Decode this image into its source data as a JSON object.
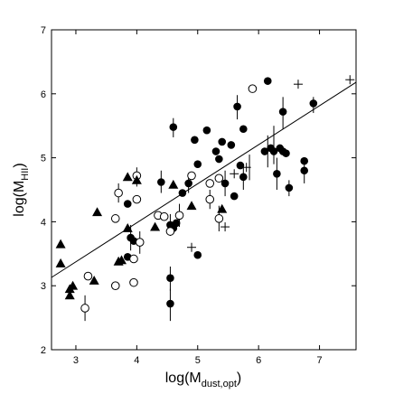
{
  "chart_data": {
    "type": "scatter",
    "title": "",
    "xlabel": "log(M",
    "xlabel_sub": "dust,opt",
    "xlabel_tail": ")",
    "ylabel": "log(M",
    "ylabel_sub": "HII",
    "ylabel_tail": ")",
    "xlim": [
      2.6,
      7.6
    ],
    "ylim": [
      2,
      7
    ],
    "xticks": [
      "3",
      "4",
      "5",
      "6",
      "7"
    ],
    "yticks": [
      "2",
      "3",
      "4",
      "5",
      "6",
      "7"
    ],
    "grid": false,
    "marker_color": "#000000",
    "fit_line": {
      "x": [
        2.6,
        7.6
      ],
      "y": [
        3.13,
        6.18
      ]
    },
    "series": [
      {
        "marker": "filled-circle",
        "points": [
          [
            3.85,
            4.28
          ],
          [
            3.9,
            3.75
          ],
          [
            3.95,
            3.7
          ],
          [
            3.85,
            3.45
          ],
          [
            4.4,
            4.62
          ],
          [
            4.55,
            3.95
          ],
          [
            4.6,
            3.9
          ],
          [
            4.65,
            3.98
          ],
          [
            4.6,
            5.48
          ],
          [
            4.75,
            4.45
          ],
          [
            4.85,
            4.6
          ],
          [
            4.95,
            5.28
          ],
          [
            5.0,
            4.9
          ],
          [
            5.15,
            5.43
          ],
          [
            5.3,
            5.1
          ],
          [
            5.35,
            4.98
          ],
          [
            5.4,
            5.25
          ],
          [
            5.45,
            4.6
          ],
          [
            5.55,
            5.2
          ],
          [
            5.6,
            4.4
          ],
          [
            5.7,
            4.88
          ],
          [
            5.75,
            4.7
          ],
          [
            5.65,
            5.8
          ],
          [
            5.75,
            5.45
          ],
          [
            6.1,
            5.1
          ],
          [
            6.15,
            6.2
          ],
          [
            6.2,
            5.15
          ],
          [
            6.25,
            5.1
          ],
          [
            6.3,
            4.75
          ],
          [
            6.35,
            5.15
          ],
          [
            6.4,
            5.1
          ],
          [
            6.45,
            5.07
          ],
          [
            6.4,
            5.72
          ],
          [
            6.5,
            4.53
          ],
          [
            6.75,
            4.95
          ],
          [
            6.75,
            4.8
          ],
          [
            6.9,
            5.85
          ],
          [
            4.55,
            3.12
          ],
          [
            4.55,
            2.72
          ],
          [
            5.0,
            3.48
          ]
        ]
      },
      {
        "marker": "open-circle",
        "points": [
          [
            3.15,
            2.65
          ],
          [
            3.2,
            3.15
          ],
          [
            3.65,
            3.0
          ],
          [
            3.65,
            4.05
          ],
          [
            3.7,
            4.45
          ],
          [
            3.95,
            3.05
          ],
          [
            3.95,
            3.42
          ],
          [
            4.0,
            4.35
          ],
          [
            4.0,
            4.72
          ],
          [
            4.05,
            3.68
          ],
          [
            4.35,
            4.1
          ],
          [
            4.45,
            4.08
          ],
          [
            4.55,
            3.85
          ],
          [
            4.7,
            4.1
          ],
          [
            4.9,
            4.72
          ],
          [
            5.2,
            4.35
          ],
          [
            5.2,
            4.6
          ],
          [
            5.35,
            4.05
          ],
          [
            5.35,
            4.68
          ],
          [
            5.9,
            6.08
          ]
        ]
      },
      {
        "marker": "filled-triangle",
        "points": [
          [
            2.75,
            3.35
          ],
          [
            2.75,
            3.65
          ],
          [
            2.9,
            2.85
          ],
          [
            2.9,
            2.95
          ],
          [
            2.95,
            3.0
          ],
          [
            3.3,
            3.08
          ],
          [
            3.35,
            4.15
          ],
          [
            3.7,
            3.38
          ],
          [
            3.75,
            3.4
          ],
          [
            3.85,
            3.9
          ],
          [
            3.85,
            4.7
          ],
          [
            4.0,
            4.65
          ],
          [
            4.3,
            3.92
          ],
          [
            4.6,
            4.58
          ],
          [
            4.9,
            4.25
          ],
          [
            5.4,
            4.2
          ]
        ]
      },
      {
        "marker": "plus",
        "points": [
          [
            4.9,
            3.6
          ],
          [
            5.45,
            3.92
          ],
          [
            5.6,
            4.75
          ],
          [
            5.8,
            4.85
          ],
          [
            6.65,
            6.15
          ],
          [
            7.5,
            6.22
          ]
        ]
      }
    ],
    "error_bars": [
      [
        3.15,
        2.45,
        2.85
      ],
      [
        3.9,
        3.55,
        3.95
      ],
      [
        4.05,
        3.5,
        3.85
      ],
      [
        4.4,
        4.45,
        4.8
      ],
      [
        4.55,
        3.78,
        4.12
      ],
      [
        4.6,
        5.32,
        5.62
      ],
      [
        4.55,
        2.92,
        3.3
      ],
      [
        4.55,
        2.45,
        2.95
      ],
      [
        4.7,
        3.92,
        4.28
      ],
      [
        4.85,
        4.45,
        4.75
      ],
      [
        5.2,
        4.2,
        4.5
      ],
      [
        5.35,
        3.85,
        4.25
      ],
      [
        5.45,
        4.4,
        4.8
      ],
      [
        5.65,
        5.6,
        5.98
      ],
      [
        5.75,
        4.5,
        4.9
      ],
      [
        5.85,
        4.65,
        5.05
      ],
      [
        6.15,
        4.85,
        5.35
      ],
      [
        6.25,
        4.9,
        5.5
      ],
      [
        6.3,
        4.5,
        5.0
      ],
      [
        6.4,
        5.45,
        5.95
      ],
      [
        6.5,
        4.4,
        4.65
      ],
      [
        6.75,
        4.6,
        5.0
      ],
      [
        6.9,
        5.7,
        5.95
      ],
      [
        3.7,
        4.3,
        4.6
      ],
      [
        4.0,
        4.55,
        4.85
      ]
    ]
  }
}
